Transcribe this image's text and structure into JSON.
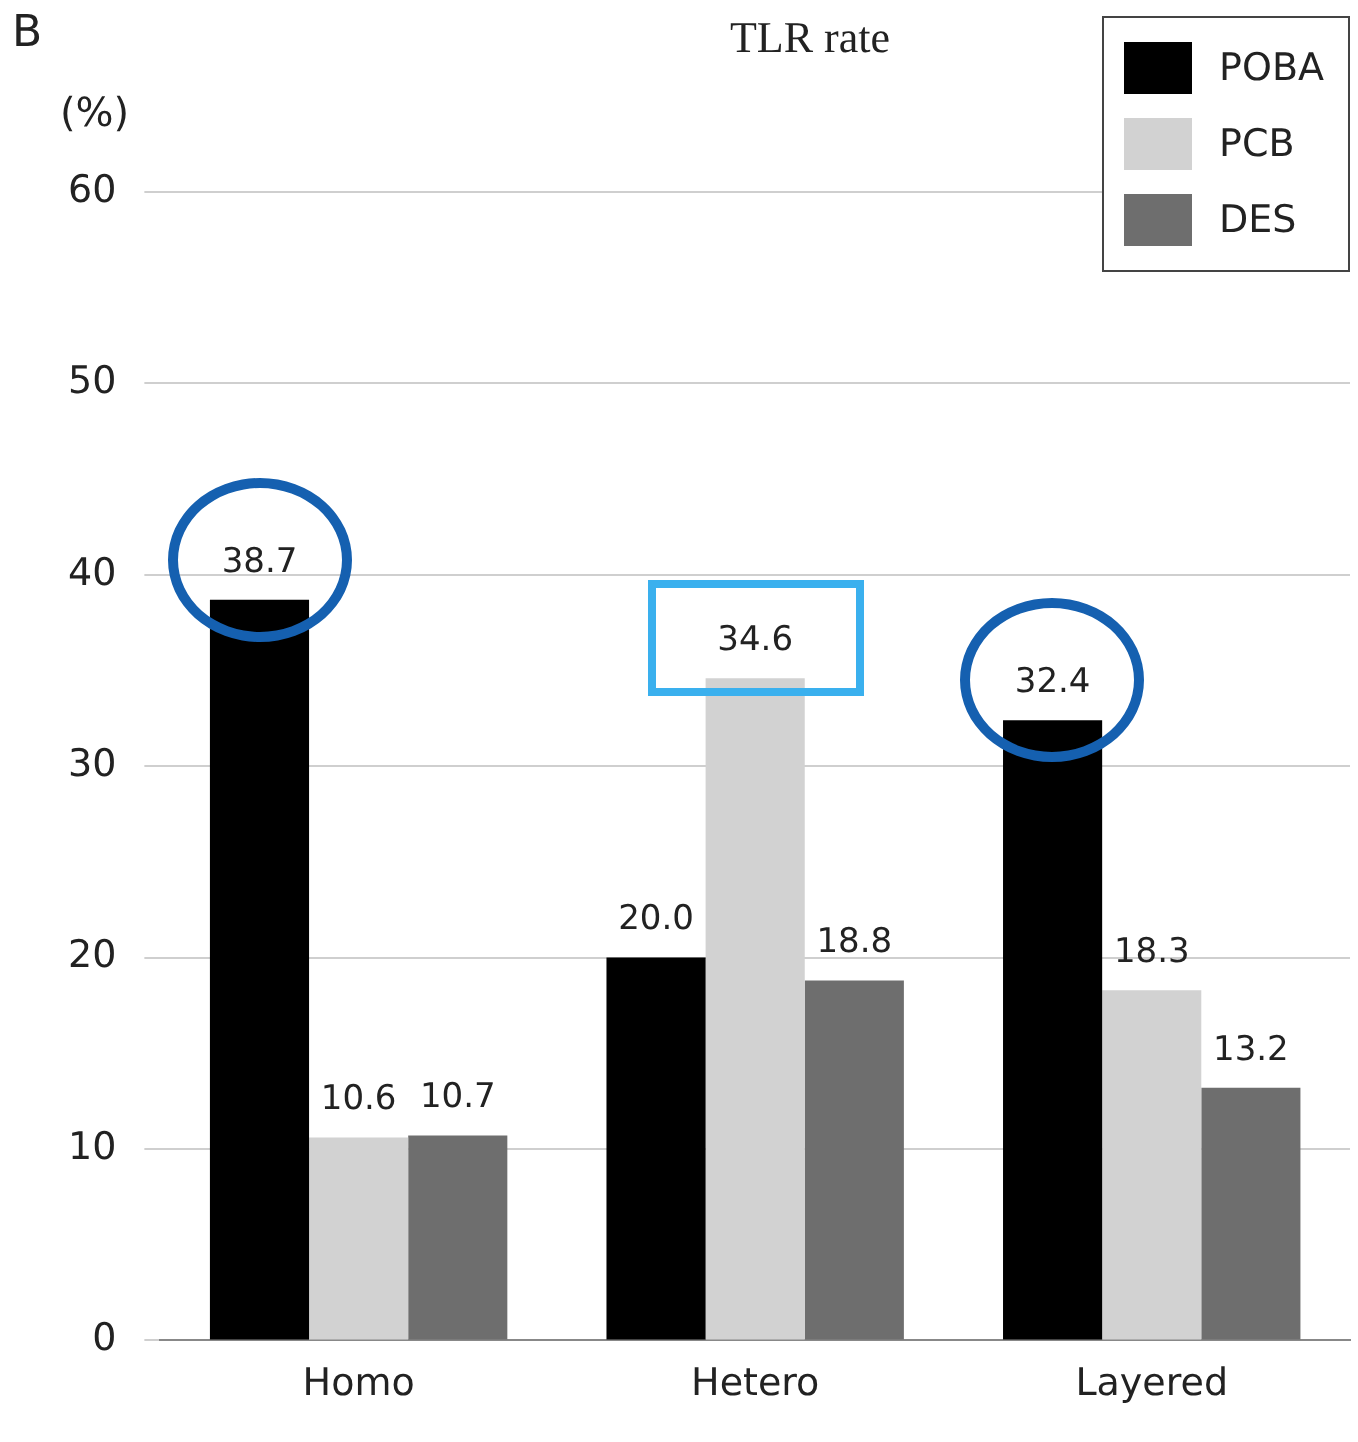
{
  "chart_data": {
    "type": "bar",
    "title": "TLR rate",
    "ylabel": "(%)",
    "annotations": [
      "B"
    ],
    "categories": [
      "Homo",
      "Hetero",
      "Layered"
    ],
    "series": [
      {
        "name": "POBA",
        "color": "#000000",
        "values": [
          38.7,
          20.0,
          32.4
        ],
        "value_labels": [
          "38.7",
          "20.0",
          "32.4"
        ]
      },
      {
        "name": "PCB",
        "color": "#d2d2d2",
        "values": [
          10.6,
          34.6,
          18.3
        ],
        "value_labels": [
          "10.6",
          "34.6",
          "18.3"
        ]
      },
      {
        "name": "DES",
        "color": "#6e6e6e",
        "values": [
          10.7,
          18.8,
          13.2
        ],
        "value_labels": [
          "10.7",
          "18.8",
          "13.2"
        ]
      }
    ],
    "ylim": [
      0,
      60
    ],
    "yticks": [
      0,
      10,
      20,
      30,
      40,
      50,
      60
    ],
    "grid": "y",
    "legend": "top right"
  }
}
